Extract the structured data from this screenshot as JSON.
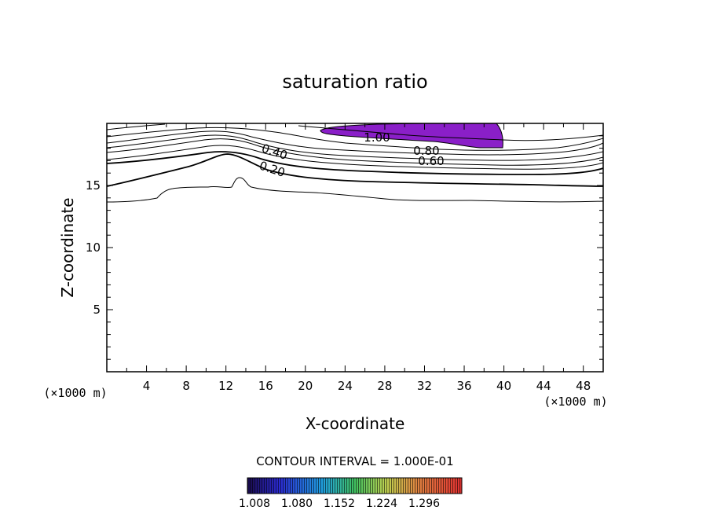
{
  "chart_data": {
    "type": "contour",
    "title": "saturation ratio",
    "xlabel": "X-coordinate",
    "ylabel": "Z-coordinate",
    "x_unit": "(×1000 m)",
    "y_unit": "(×1000 m)",
    "xlim": [
      0,
      50
    ],
    "ylim": [
      0,
      20
    ],
    "x_ticks": [
      4,
      8,
      12,
      16,
      20,
      24,
      28,
      32,
      36,
      40,
      44,
      48
    ],
    "y_ticks": [
      5,
      10,
      15
    ],
    "contour_interval_text": "CONTOUR INTERVAL = 1.000E-01",
    "contour_labels": [
      "1.00",
      "0.80",
      "0.60",
      "0.40",
      "0.20"
    ],
    "shaded_region": {
      "label": "saturation ratio > 1.00",
      "color": "#8a1fc8",
      "x_range": [
        21.5,
        40
      ],
      "z_range": [
        18,
        20
      ]
    },
    "colorbar": {
      "ticks": [
        "1.008",
        "1.080",
        "1.152",
        "1.224",
        "1.296"
      ]
    }
  }
}
